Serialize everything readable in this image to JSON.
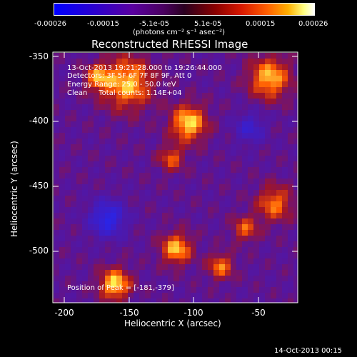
{
  "colorbar": {
    "ticks": [
      "-0.00026",
      "-0.00015",
      "-5.1e-05",
      "5.1e-05",
      "0.00015",
      "0.00026"
    ],
    "units": "(photons cm⁻² s⁻¹ asec⁻²)"
  },
  "plot": {
    "title": "Reconstructed RHESSI Image",
    "xlabel": "Heliocentric X (arcsec)",
    "ylabel": "Heliocentric Y (arcsec)",
    "xticks": [
      "-200",
      "-150",
      "-100",
      "-50"
    ],
    "yticks": [
      "-350",
      "-400",
      "-450",
      "-500"
    ]
  },
  "info": {
    "line1": "13-Oct-2013 19:21:28.000 to 19:26:44.000",
    "line2": "Detectors: 3F 5F 6F 7F 8F 9F, Att 0",
    "line3": "Energy Range: 25.0 - 50.0 keV",
    "line4": "Clean     Total counts: 1.14E+04",
    "peak": "Position of Peak = [-181,-379]"
  },
  "footer": {
    "date": "14-Oct-2013 00:15"
  },
  "colors": {
    "background": "#000000",
    "text": "#ffffff"
  }
}
